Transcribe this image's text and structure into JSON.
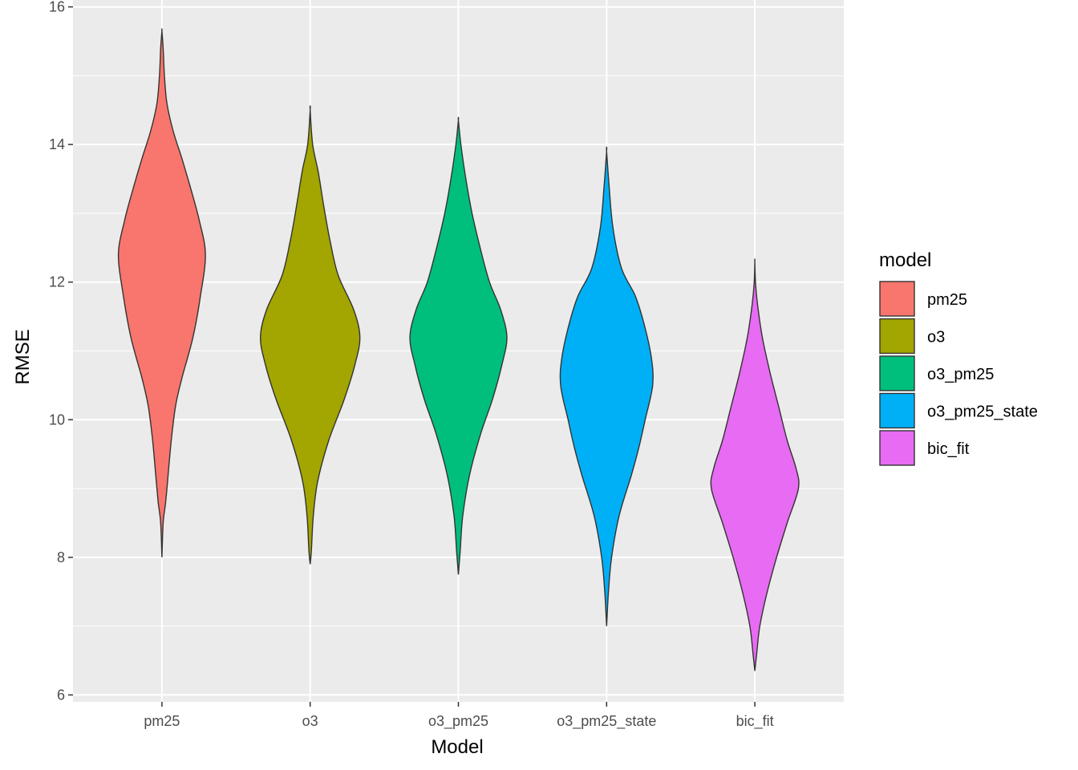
{
  "chart_data": {
    "type": "violin",
    "xlabel": "Model",
    "ylabel": "RMSE",
    "ylim": [
      5.9,
      16.1
    ],
    "y_ticks": [
      6,
      8,
      10,
      12,
      14,
      16
    ],
    "y_tick_labels": [
      "6",
      "8",
      "10",
      "12",
      "14",
      "16"
    ],
    "categories": [
      "pm25",
      "o3",
      "o3_pm25",
      "o3_pm25_state",
      "bic_fit"
    ],
    "grid": true,
    "legend": {
      "title": "model",
      "position": "right",
      "items": [
        "pm25",
        "o3",
        "o3_pm25",
        "o3_pm25_state",
        "bic_fit"
      ]
    },
    "colors": [
      "#F8766D",
      "#A3A500",
      "#00BF7D",
      "#00B0F6",
      "#E76BF3"
    ],
    "series": [
      {
        "category": "pm25",
        "min": 8.0,
        "max": 15.65,
        "mode": 12.4,
        "density": [
          [
            8.0,
            0.0
          ],
          [
            8.5,
            0.02
          ],
          [
            8.8,
            0.06
          ],
          [
            9.2,
            0.1
          ],
          [
            9.7,
            0.15
          ],
          [
            10.2,
            0.22
          ],
          [
            10.6,
            0.32
          ],
          [
            11.2,
            0.5
          ],
          [
            11.8,
            0.62
          ],
          [
            12.4,
            0.7
          ],
          [
            12.9,
            0.6
          ],
          [
            13.4,
            0.45
          ],
          [
            13.8,
            0.32
          ],
          [
            14.2,
            0.18
          ],
          [
            14.6,
            0.08
          ],
          [
            15.0,
            0.04
          ],
          [
            15.4,
            0.02
          ],
          [
            15.65,
            0.0
          ]
        ]
      },
      {
        "category": "o3",
        "min": 7.9,
        "max": 14.5,
        "mode": 11.1,
        "density": [
          [
            7.9,
            0.0
          ],
          [
            8.1,
            0.02
          ],
          [
            8.6,
            0.05
          ],
          [
            9.1,
            0.12
          ],
          [
            9.7,
            0.3
          ],
          [
            10.3,
            0.55
          ],
          [
            10.8,
            0.72
          ],
          [
            11.2,
            0.8
          ],
          [
            11.6,
            0.7
          ],
          [
            12.1,
            0.45
          ],
          [
            12.6,
            0.32
          ],
          [
            13.1,
            0.22
          ],
          [
            13.6,
            0.13
          ],
          [
            14.0,
            0.04
          ],
          [
            14.5,
            0.0
          ]
        ]
      },
      {
        "category": "o3_pm25",
        "min": 7.75,
        "max": 14.35,
        "mode": 11.2,
        "density": [
          [
            7.75,
            0.0
          ],
          [
            8.1,
            0.03
          ],
          [
            8.6,
            0.07
          ],
          [
            9.2,
            0.18
          ],
          [
            9.8,
            0.36
          ],
          [
            10.3,
            0.55
          ],
          [
            10.8,
            0.7
          ],
          [
            11.2,
            0.78
          ],
          [
            11.6,
            0.68
          ],
          [
            12.0,
            0.5
          ],
          [
            12.5,
            0.35
          ],
          [
            13.0,
            0.22
          ],
          [
            13.5,
            0.12
          ],
          [
            14.0,
            0.04
          ],
          [
            14.35,
            0.0
          ]
        ]
      },
      {
        "category": "o3_pm25_state",
        "min": 7.0,
        "max": 13.9,
        "mode": 10.7,
        "density": [
          [
            7.0,
            0.0
          ],
          [
            7.5,
            0.03
          ],
          [
            8.0,
            0.08
          ],
          [
            8.6,
            0.2
          ],
          [
            9.2,
            0.4
          ],
          [
            9.6,
            0.52
          ],
          [
            10.0,
            0.62
          ],
          [
            10.5,
            0.74
          ],
          [
            10.9,
            0.72
          ],
          [
            11.4,
            0.6
          ],
          [
            11.8,
            0.46
          ],
          [
            12.2,
            0.24
          ],
          [
            12.8,
            0.1
          ],
          [
            13.4,
            0.04
          ],
          [
            13.9,
            0.0
          ]
        ]
      },
      {
        "category": "bic_fit",
        "min": 6.35,
        "max": 12.3,
        "mode": 9.05,
        "density": [
          [
            6.35,
            0.0
          ],
          [
            6.6,
            0.03
          ],
          [
            7.0,
            0.08
          ],
          [
            7.5,
            0.2
          ],
          [
            8.0,
            0.35
          ],
          [
            8.5,
            0.52
          ],
          [
            9.0,
            0.7
          ],
          [
            9.3,
            0.66
          ],
          [
            9.7,
            0.52
          ],
          [
            10.2,
            0.38
          ],
          [
            10.7,
            0.24
          ],
          [
            11.2,
            0.12
          ],
          [
            11.7,
            0.04
          ],
          [
            12.0,
            0.01
          ],
          [
            12.3,
            0.0
          ]
        ]
      }
    ]
  }
}
